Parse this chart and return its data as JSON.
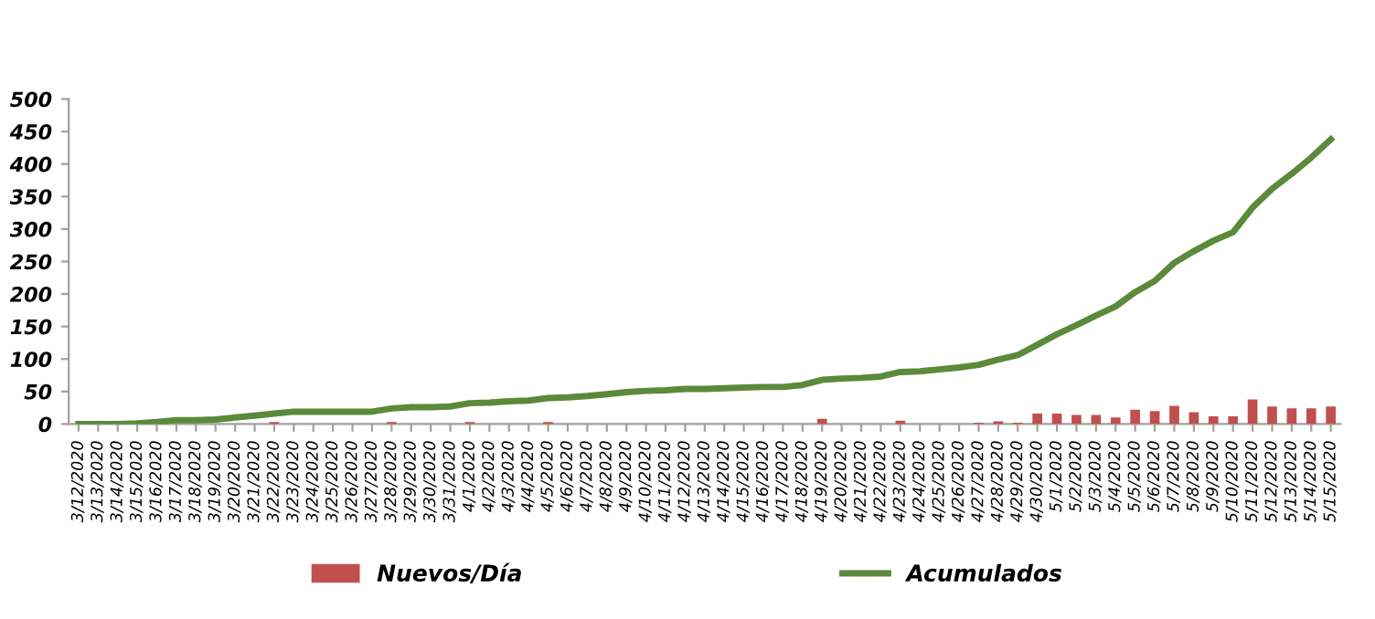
{
  "chart_data": {
    "type": "bar",
    "categories": [
      "3/12/2020",
      "3/13/2020",
      "3/14/2020",
      "3/15/2020",
      "3/16/2020",
      "3/17/2020",
      "3/18/2020",
      "3/19/2020",
      "3/20/2020",
      "3/21/2020",
      "3/22/2020",
      "3/23/2020",
      "3/24/2020",
      "3/25/2020",
      "3/26/2020",
      "3/27/2020",
      "3/28/2020",
      "3/29/2020",
      "3/30/2020",
      "3/31/2020",
      "4/1/2020",
      "4/2/2020",
      "4/3/2020",
      "4/4/2020",
      "4/5/2020",
      "4/6/2020",
      "4/7/2020",
      "4/8/2020",
      "4/9/2020",
      "4/10/2020",
      "4/11/2020",
      "4/12/2020",
      "4/13/2020",
      "4/14/2020",
      "4/15/2020",
      "4/16/2020",
      "4/17/2020",
      "4/18/2020",
      "4/19/2020",
      "4/20/2020",
      "4/21/2020",
      "4/22/2020",
      "4/23/2020",
      "4/24/2020",
      "4/25/2020",
      "4/26/2020",
      "4/27/2020",
      "4/28/2020",
      "4/29/2020",
      "4/30/2020",
      "5/1/2020",
      "5/2/2020",
      "5/3/2020",
      "5/4/2020",
      "5/5/2020",
      "5/6/2020",
      "5/7/2020",
      "5/8/2020",
      "5/9/2020",
      "5/10/2020",
      "5/11/2020",
      "5/12/2020",
      "5/13/2020",
      "5/14/2020",
      "5/15/2020"
    ],
    "series": [
      {
        "name": "Nuevos/Día",
        "color": "#c0504d",
        "values": [
          0,
          0,
          0,
          0,
          0,
          0,
          0,
          0,
          0,
          0,
          3,
          0,
          0,
          0,
          0,
          0,
          3,
          0,
          0,
          0,
          3,
          0,
          0,
          0,
          3,
          0,
          0,
          0,
          0,
          0,
          0,
          0,
          0,
          0,
          0,
          0,
          0,
          0,
          8,
          0,
          0,
          0,
          5,
          0,
          0,
          0,
          2,
          4,
          2,
          16,
          16,
          14,
          14,
          10,
          22,
          20,
          28,
          18,
          12,
          12,
          38,
          27,
          24,
          24,
          27
        ]
      },
      {
        "name": "Acumulados",
        "type": "line",
        "color": "#5a8a3a",
        "values": [
          0,
          0,
          0,
          1,
          3,
          6,
          6,
          7,
          10,
          13,
          16,
          19,
          19,
          19,
          19,
          19,
          24,
          26,
          26,
          27,
          32,
          33,
          35,
          36,
          40,
          41,
          43,
          46,
          49,
          51,
          52,
          54,
          54,
          55,
          56,
          57,
          57,
          60,
          68,
          70,
          71,
          73,
          80,
          81,
          84,
          87,
          91,
          99,
          106,
          122,
          138,
          152,
          167,
          181,
          203,
          220,
          248,
          266,
          282,
          295,
          333,
          362,
          385,
          410,
          438
        ]
      }
    ],
    "ylim": [
      0,
      500
    ],
    "yticks": [
      0,
      50,
      100,
      150,
      200,
      250,
      300,
      350,
      400,
      450,
      500
    ],
    "legend": "bottom",
    "grid": false,
    "line_style": "solid",
    "marker": "none"
  }
}
